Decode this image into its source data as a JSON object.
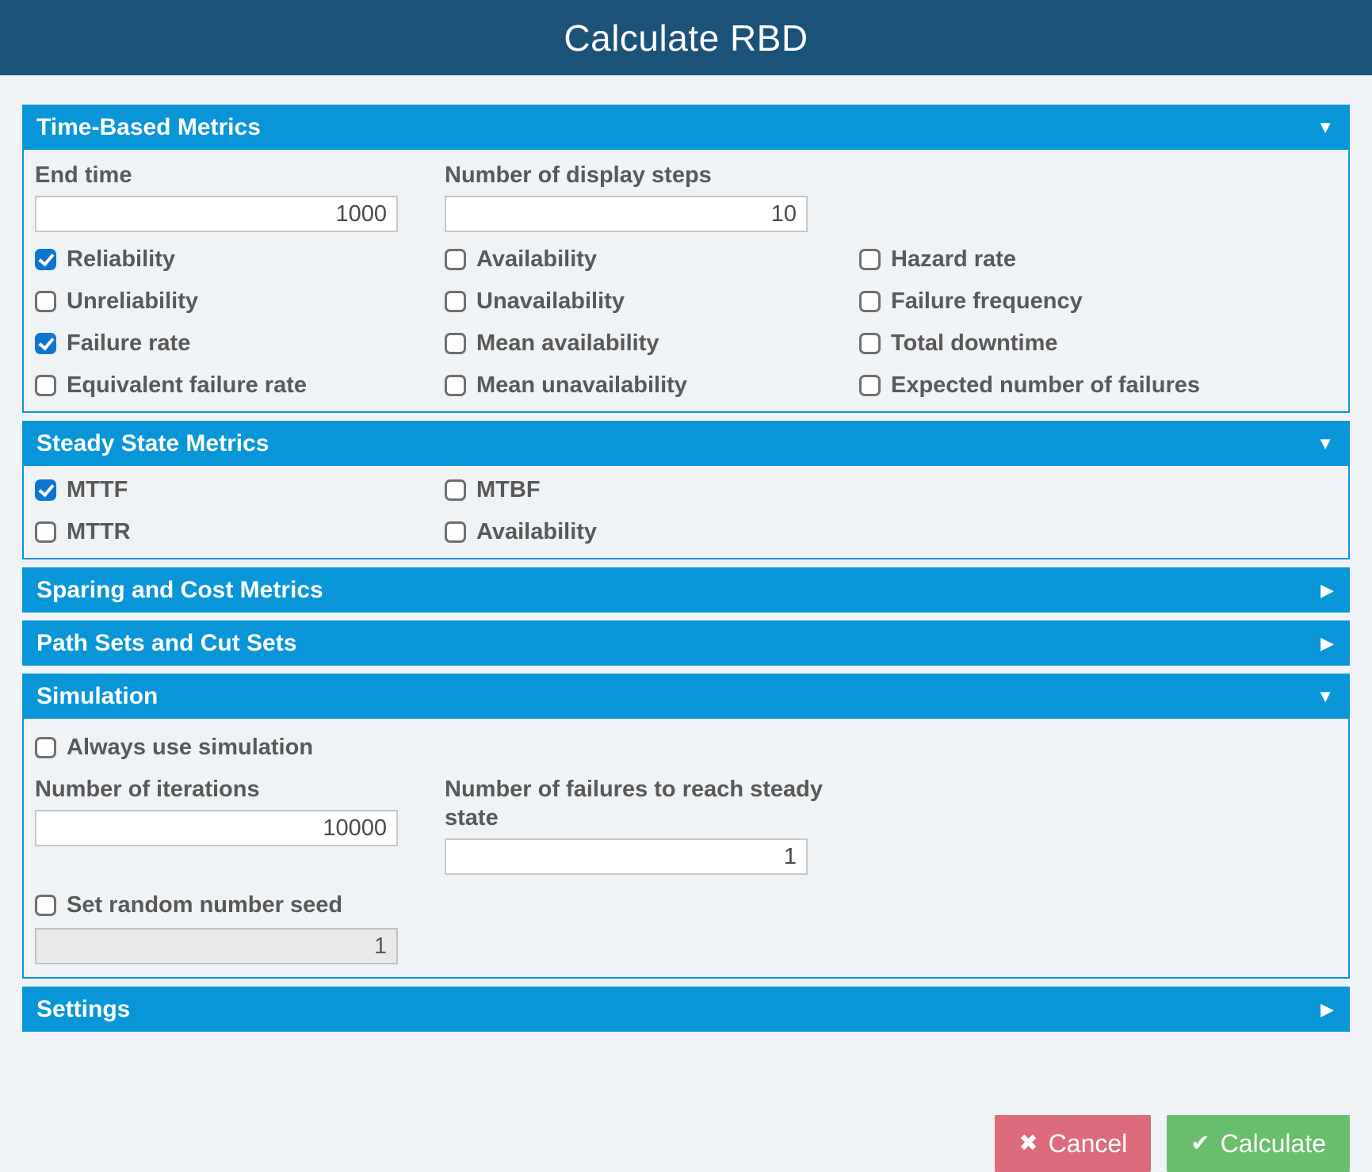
{
  "header": {
    "title": "Calculate RBD"
  },
  "icons": {
    "caret_down": "▼",
    "caret_right": "▶",
    "cancel_x": "✖",
    "check": "✔"
  },
  "colors": {
    "titlebar_bg": "#1B5278",
    "section_bar_bg": "#0996D8",
    "page_bg": "#EFF3F6",
    "checkbox_checked": "#0E76D2",
    "cancel_bg": "#DC6C7C",
    "calculate_bg": "#69BE6C"
  },
  "sections": {
    "time_based": {
      "title": "Time-Based Metrics",
      "expanded": true,
      "fields": {
        "end_time": {
          "label": "End time",
          "value": "1000"
        },
        "display_steps": {
          "label": "Number of display steps",
          "value": "10"
        }
      },
      "checkboxes": {
        "col1": [
          {
            "label": "Reliability",
            "checked": true
          },
          {
            "label": "Unreliability",
            "checked": false
          },
          {
            "label": "Failure rate",
            "checked": true
          },
          {
            "label": "Equivalent failure rate",
            "checked": false
          }
        ],
        "col2": [
          {
            "label": "Availability",
            "checked": false
          },
          {
            "label": "Unavailability",
            "checked": false
          },
          {
            "label": "Mean availability",
            "checked": false
          },
          {
            "label": "Mean unavailability",
            "checked": false
          }
        ],
        "col3": [
          {
            "label": "Hazard rate",
            "checked": false
          },
          {
            "label": "Failure frequency",
            "checked": false
          },
          {
            "label": "Total downtime",
            "checked": false
          },
          {
            "label": "Expected number of failures",
            "checked": false
          }
        ]
      }
    },
    "steady_state": {
      "title": "Steady State Metrics",
      "expanded": true,
      "checkboxes": {
        "col1": [
          {
            "label": "MTTF",
            "checked": true
          },
          {
            "label": "MTTR",
            "checked": false
          }
        ],
        "col2": [
          {
            "label": "MTBF",
            "checked": false
          },
          {
            "label": "Availability",
            "checked": false
          }
        ]
      }
    },
    "sparing": {
      "title": "Sparing and Cost Metrics",
      "expanded": false
    },
    "path_sets": {
      "title": "Path Sets and Cut Sets",
      "expanded": false
    },
    "simulation": {
      "title": "Simulation",
      "expanded": true,
      "always_use": {
        "label": "Always use simulation",
        "checked": false
      },
      "iterations": {
        "label": "Number of iterations",
        "value": "10000"
      },
      "failures_steady": {
        "label": "Number of failures to reach steady state",
        "value": "1"
      },
      "random_seed": {
        "label": "Set random number seed",
        "checked": false
      },
      "seed": {
        "value": "1",
        "disabled": true
      }
    },
    "settings": {
      "title": "Settings",
      "expanded": false
    }
  },
  "footer": {
    "cancel_label": "Cancel",
    "calculate_label": "Calculate"
  }
}
